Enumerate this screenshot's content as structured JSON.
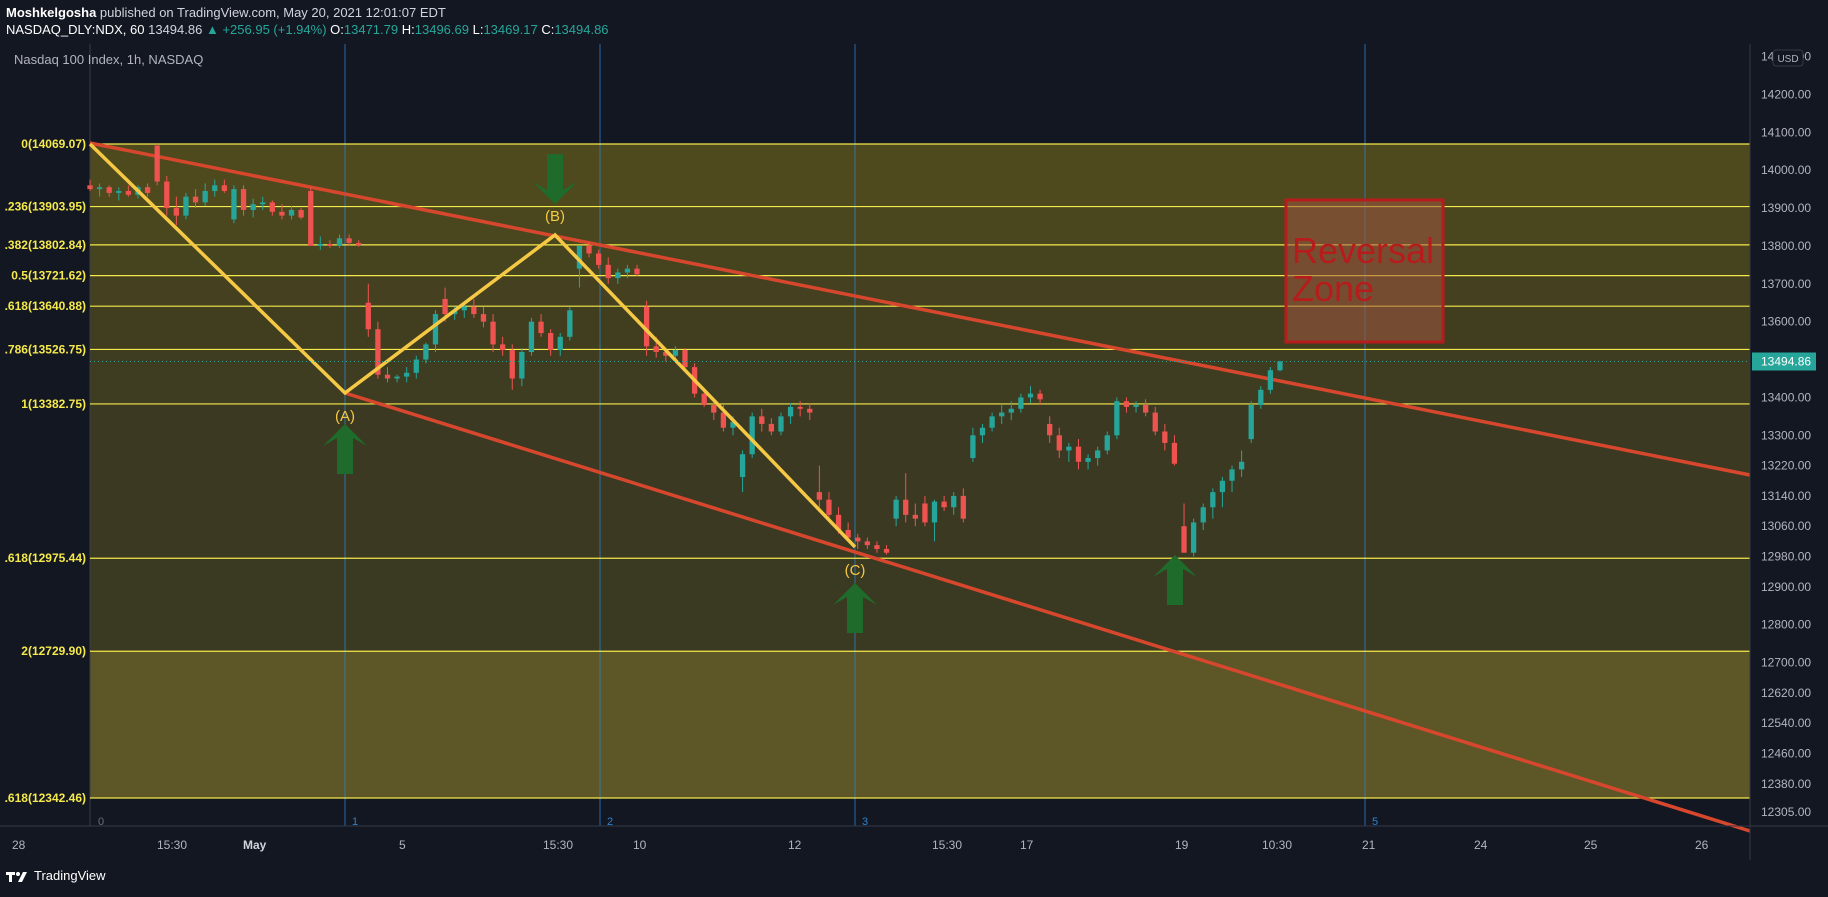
{
  "header": {
    "author": "Moshkelgosha",
    "published_text": "published on TradingView.com, May 20, 2021 12:01:07 EDT",
    "symbol": "NASDAQ_DLY:NDX, 60",
    "last": "13494.86",
    "change": "▲ +256.95 (+1.94%)",
    "o_label": "O:",
    "o": "13471.79",
    "h_label": "H:",
    "h": "13496.69",
    "l_label": "L:",
    "l": "13469.17",
    "c_label": "C:",
    "c": "13494.86"
  },
  "footer": {
    "brand": "TradingView"
  },
  "colors": {
    "background": "#131722",
    "up": "#26a69a",
    "down": "#ef5350",
    "fib_line": "#f5e94b",
    "channel": "#d7472e",
    "zigzag": "#f6c945",
    "arrow": "#1f6b2b",
    "reversal": "#b71c1c",
    "vline": "#2f80c9"
  },
  "chart_data": {
    "type": "candlestick",
    "title": "Nasdaq 100 Index, 1h, NASDAQ",
    "currency": "USD",
    "last_price_label": "13494.86",
    "y_ticks": [
      "14300.00",
      "14200.00",
      "14100.00",
      "14000.00",
      "13900.00",
      "13800.00",
      "13700.00",
      "13600.00",
      "13494.86",
      "13400.00",
      "13300.00",
      "13220.00",
      "13140.00",
      "13060.00",
      "12980.00",
      "12900.00",
      "12800.00",
      "12700.00",
      "12620.00",
      "12540.00",
      "12460.00",
      "12380.00",
      "12305.00"
    ],
    "x_ticks": [
      "28",
      "15:30",
      "May",
      "5",
      "15:30",
      "10",
      "12",
      "15:30",
      "17",
      "19",
      "10:30",
      "21",
      "24",
      "25",
      "26"
    ],
    "fib_levels": [
      {
        "label": "0(14069.07)",
        "price": 14069.07
      },
      {
        "label": ".236(13903.95)",
        "price": 13903.95
      },
      {
        "label": ".382(13802.84)",
        "price": 13802.84
      },
      {
        "label": "0.5(13721.62)",
        "price": 13721.62
      },
      {
        "label": ".618(13640.88)",
        "price": 13640.88
      },
      {
        "label": ".786(13526.75)",
        "price": 13526.75
      },
      {
        "label": "1(13382.75)",
        "price": 13382.75
      },
      {
        "label": ".618(12975.44)",
        "price": 12975.44
      },
      {
        "label": "2(12729.90)",
        "price": 12729.9
      },
      {
        "label": ".618(12342.46)",
        "price": 12342.46
      }
    ],
    "wave_labels": [
      "(A)",
      "(B)",
      "(C)"
    ],
    "cycle_labels": [
      "0",
      "1",
      "2",
      "3",
      "5"
    ],
    "annotation": "Reversal Zone",
    "candles": [
      [
        13960,
        13975,
        13945,
        13950
      ],
      [
        13950,
        13965,
        13930,
        13955
      ],
      [
        13955,
        13960,
        13930,
        13940
      ],
      [
        13940,
        13955,
        13920,
        13945
      ],
      [
        13945,
        13960,
        13930,
        13935
      ],
      [
        13935,
        13960,
        13925,
        13955
      ],
      [
        13955,
        13965,
        13930,
        13940
      ],
      [
        14065,
        14069,
        13960,
        13970
      ],
      [
        13970,
        13985,
        13880,
        13900
      ],
      [
        13900,
        13930,
        13855,
        13880
      ],
      [
        13880,
        13940,
        13870,
        13930
      ],
      [
        13930,
        13950,
        13900,
        13915
      ],
      [
        13915,
        13965,
        13905,
        13945
      ],
      [
        13945,
        13975,
        13930,
        13960
      ],
      [
        13960,
        13975,
        13940,
        13945
      ],
      [
        13870,
        13960,
        13860,
        13950
      ],
      [
        13950,
        13960,
        13880,
        13895
      ],
      [
        13895,
        13925,
        13875,
        13910
      ],
      [
        13910,
        13930,
        13895,
        13915
      ],
      [
        13915,
        13920,
        13880,
        13890
      ],
      [
        13890,
        13910,
        13870,
        13880
      ],
      [
        13880,
        13905,
        13870,
        13895
      ],
      [
        13895,
        13900,
        13870,
        13875
      ],
      [
        13945,
        13955,
        13800,
        13800
      ],
      [
        13800,
        13825,
        13790,
        13805
      ],
      [
        13805,
        13815,
        13795,
        13800
      ],
      [
        13800,
        13830,
        13795,
        13820
      ],
      [
        13820,
        13830,
        13800,
        13808
      ],
      [
        13808,
        13815,
        13798,
        13802
      ],
      [
        13650,
        13700,
        13560,
        13580
      ],
      [
        13580,
        13600,
        13450,
        13460
      ],
      [
        13460,
        13480,
        13440,
        13450
      ],
      [
        13450,
        13460,
        13440,
        13455
      ],
      [
        13455,
        13480,
        13440,
        13465
      ],
      [
        13465,
        13510,
        13450,
        13500
      ],
      [
        13500,
        13545,
        13490,
        13540
      ],
      [
        13540,
        13630,
        13520,
        13620
      ],
      [
        13660,
        13690,
        13600,
        13620
      ],
      [
        13620,
        13640,
        13605,
        13630
      ],
      [
        13630,
        13650,
        13610,
        13640
      ],
      [
        13640,
        13660,
        13610,
        13620
      ],
      [
        13620,
        13640,
        13585,
        13600
      ],
      [
        13600,
        13620,
        13520,
        13540
      ],
      [
        13540,
        13560,
        13510,
        13525
      ],
      [
        13525,
        13540,
        13420,
        13450
      ],
      [
        13450,
        13530,
        13430,
        13520
      ],
      [
        13520,
        13610,
        13510,
        13600
      ],
      [
        13600,
        13620,
        13560,
        13570
      ],
      [
        13570,
        13580,
        13510,
        13525
      ],
      [
        13525,
        13570,
        13510,
        13560
      ],
      [
        13560,
        13640,
        13550,
        13630
      ],
      [
        13740,
        13790,
        13690,
        13800
      ],
      [
        13800,
        13810,
        13770,
        13780
      ],
      [
        13780,
        13790,
        13740,
        13750
      ],
      [
        13750,
        13770,
        13700,
        13715
      ],
      [
        13715,
        13740,
        13700,
        13730
      ],
      [
        13730,
        13750,
        13715,
        13740
      ],
      [
        13740,
        13750,
        13720,
        13725
      ],
      [
        13640,
        13655,
        13510,
        13535
      ],
      [
        13535,
        13560,
        13505,
        13520
      ],
      [
        13520,
        13530,
        13495,
        13510
      ],
      [
        13510,
        13535,
        13500,
        13525
      ],
      [
        13525,
        13530,
        13470,
        13480
      ],
      [
        13480,
        13490,
        13400,
        13410
      ],
      [
        13410,
        13420,
        13375,
        13380
      ],
      [
        13380,
        13395,
        13340,
        13360
      ],
      [
        13360,
        13380,
        13310,
        13320
      ],
      [
        13320,
        13350,
        13300,
        13335
      ],
      [
        13190,
        13260,
        13150,
        13250
      ],
      [
        13250,
        13360,
        13240,
        13350
      ],
      [
        13350,
        13370,
        13310,
        13330
      ],
      [
        13330,
        13345,
        13300,
        13310
      ],
      [
        13310,
        13360,
        13300,
        13350
      ],
      [
        13350,
        13385,
        13330,
        13375
      ],
      [
        13375,
        13390,
        13350,
        13370
      ],
      [
        13370,
        13385,
        13340,
        13360
      ],
      [
        13150,
        13220,
        13110,
        13130
      ],
      [
        13130,
        13150,
        13080,
        13090
      ],
      [
        13090,
        13110,
        13040,
        13050
      ],
      [
        13050,
        13070,
        13020,
        13030
      ],
      [
        13030,
        13040,
        13000,
        13020
      ],
      [
        13020,
        13030,
        13000,
        13010
      ],
      [
        13010,
        13020,
        12990,
        13000
      ],
      [
        13000,
        13010,
        12985,
        12990
      ],
      [
        13080,
        13140,
        13060,
        13130
      ],
      [
        13130,
        13200,
        13070,
        13090
      ],
      [
        13090,
        13120,
        13060,
        13080
      ],
      [
        13120,
        13140,
        13060,
        13070
      ],
      [
        13070,
        13130,
        13020,
        13125
      ],
      [
        13125,
        13140,
        13100,
        13110
      ],
      [
        13110,
        13150,
        13090,
        13140
      ],
      [
        13140,
        13160,
        13070,
        13080
      ],
      [
        13240,
        13320,
        13230,
        13300
      ],
      [
        13300,
        13330,
        13280,
        13320
      ],
      [
        13320,
        13360,
        13310,
        13350
      ],
      [
        13350,
        13380,
        13330,
        13360
      ],
      [
        13360,
        13390,
        13340,
        13370
      ],
      [
        13370,
        13410,
        13360,
        13400
      ],
      [
        13400,
        13430,
        13385,
        13410
      ],
      [
        13410,
        13420,
        13380,
        13395
      ],
      [
        13330,
        13350,
        13280,
        13300
      ],
      [
        13300,
        13320,
        13240,
        13260
      ],
      [
        13260,
        13280,
        13230,
        13270
      ],
      [
        13270,
        13290,
        13210,
        13230
      ],
      [
        13230,
        13250,
        13210,
        13240
      ],
      [
        13240,
        13270,
        13220,
        13260
      ],
      [
        13260,
        13310,
        13250,
        13300
      ],
      [
        13300,
        13400,
        13290,
        13390
      ],
      [
        13390,
        13400,
        13360,
        13375
      ],
      [
        13375,
        13390,
        13360,
        13380
      ],
      [
        13380,
        13395,
        13350,
        13360
      ],
      [
        13360,
        13375,
        13300,
        13310
      ],
      [
        13310,
        13330,
        13260,
        13280
      ],
      [
        13280,
        13300,
        13220,
        13225
      ],
      [
        13060,
        13120,
        12990,
        12990
      ],
      [
        12990,
        13080,
        12980,
        13070
      ],
      [
        13070,
        13120,
        13050,
        13110
      ],
      [
        13110,
        13160,
        13080,
        13150
      ],
      [
        13150,
        13190,
        13110,
        13180
      ],
      [
        13180,
        13220,
        13150,
        13210
      ],
      [
        13210,
        13260,
        13190,
        13230
      ],
      [
        13290,
        13390,
        13280,
        13380
      ],
      [
        13380,
        13430,
        13370,
        13420
      ],
      [
        13420,
        13480,
        13410,
        13471.79
      ],
      [
        13471.79,
        13496.69,
        13469.17,
        13494.86
      ]
    ]
  }
}
